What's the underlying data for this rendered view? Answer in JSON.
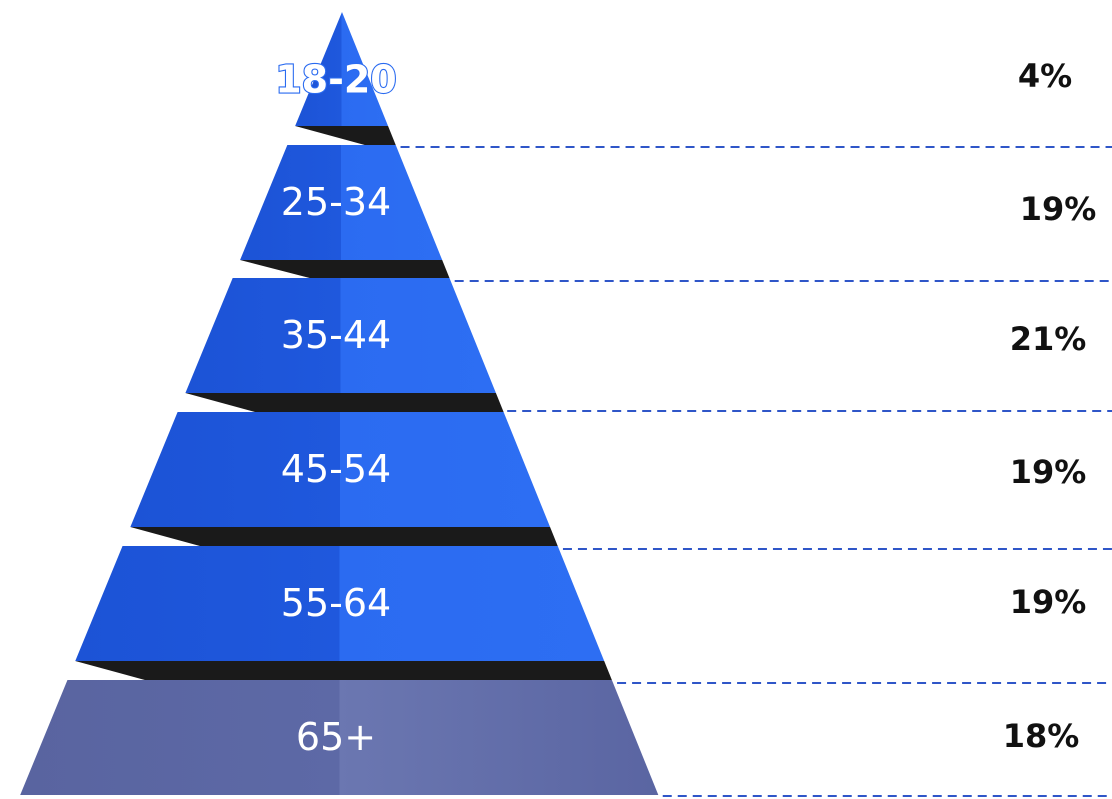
{
  "chart_data": {
    "type": "pyramid",
    "title": "",
    "categories": [
      "18-20",
      "25-34",
      "35-44",
      "45-54",
      "55-64",
      "65+"
    ],
    "values": [
      4,
      19,
      21,
      19,
      19,
      18
    ],
    "value_labels": [
      "4%",
      "19%",
      "21%",
      "19%",
      "19%",
      "18%"
    ],
    "unit": "%",
    "colors": {
      "tier_left": "#1c53d6",
      "tier_right": "#2b6bf1",
      "base_left": "#5964a0",
      "base_right": "#6b77b1",
      "shadow": "#1a1a1a",
      "guide_line": "#2f56c8",
      "percent_text": "#111111"
    },
    "guide_lines": "dashed",
    "legend": "none"
  }
}
